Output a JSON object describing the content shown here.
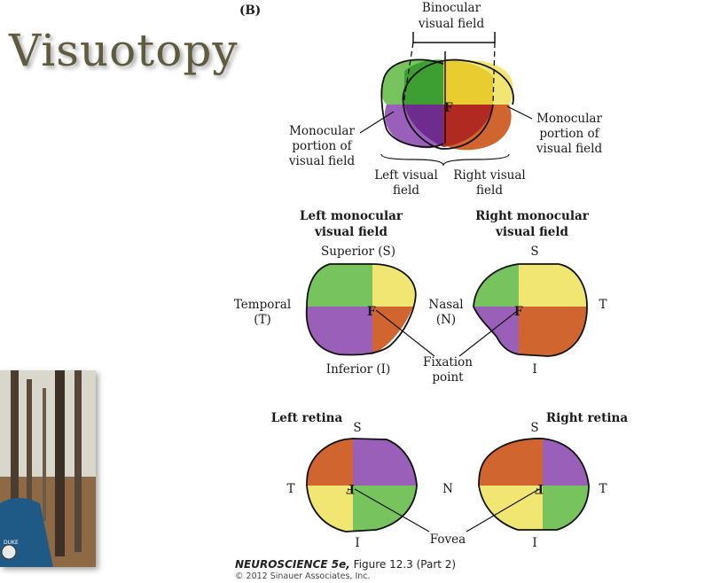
{
  "slide": {
    "title": "Visuotopy",
    "figure_tag": "(B)"
  },
  "colors": {
    "green": "#77c35d",
    "yellow": "#f1e672",
    "purple": "#9a5fb8",
    "orange": "#d0652f",
    "dark_green": "#3d9f32",
    "dark_yellow": "#e8cc30",
    "dark_purple": "#6e2d8e",
    "dark_red": "#b02a22",
    "title_color": "#5f5b3e"
  },
  "top_view": {
    "binocular": [
      "Binocular",
      "visual field"
    ],
    "mono_left": [
      "Monocular",
      "portion of",
      "visual field"
    ],
    "mono_right": [
      "Monocular",
      "portion of",
      "visual field"
    ],
    "left_field": [
      "Left visual",
      "field"
    ],
    "right_field": [
      "Right visual",
      "field"
    ],
    "fixation_mark": "F"
  },
  "fields": {
    "left_title": [
      "Left monocular",
      "visual field"
    ],
    "right_title": [
      "Right monocular",
      "visual field"
    ],
    "superior": "Superior (S)",
    "inferior": "Inferior (I)",
    "temporal": [
      "Temporal",
      "(T)"
    ],
    "nasal": [
      "Nasal",
      "(N)"
    ],
    "right_s": "S",
    "right_t": "T",
    "right_i": "I",
    "fixation_point": [
      "Fixation",
      "point"
    ],
    "fixation_mark": "F"
  },
  "retinas": {
    "left_title": "Left retina",
    "right_title": "Right retina",
    "left_s": "S",
    "right_s": "S",
    "left_t": "T",
    "n": "N",
    "right_t": "T",
    "left_i": "I",
    "right_i": "I",
    "fovea": "Fovea",
    "fovea_mark": "F"
  },
  "caption": {
    "book": "NEUROSCIENCE 5e,",
    "figure": " Figure 12.3 (Part 2)",
    "copyright": "© 2012 Sinauer Associates, Inc."
  }
}
